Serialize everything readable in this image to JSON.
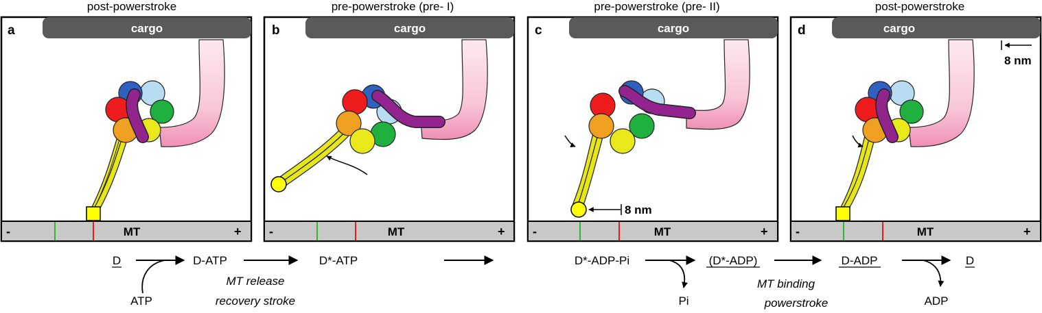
{
  "panels": [
    {
      "letter": "a",
      "title": "post-powerstroke",
      "cargo": "cargo",
      "track_label": "MT",
      "minus": "-",
      "plus": "+"
    },
    {
      "letter": "b",
      "title": "pre-powerstroke (pre- I)",
      "cargo": "cargo",
      "track_label": "MT",
      "minus": "-",
      "plus": "+"
    },
    {
      "letter": "c",
      "title": "pre-powerstroke (pre- II)",
      "cargo": "cargo",
      "track_label": "MT",
      "minus": "-",
      "plus": "+",
      "step_label": "8 nm"
    },
    {
      "letter": "d",
      "title": "post-powerstroke",
      "cargo": "cargo",
      "track_label": "MT",
      "minus": "-",
      "plus": "+",
      "step_label": "8 nm"
    }
  ],
  "scheme": {
    "states": [
      "D",
      "D-ATP",
      "D*-ATP",
      "D*-ADP-Pi",
      "(D*-ADP)",
      "D-ADP",
      "D"
    ],
    "inputs": {
      "atp": "ATP"
    },
    "outputs": {
      "pi": "Pi",
      "adp": "ADP"
    },
    "notes": {
      "release_1": "MT release",
      "release_2": "recovery stroke",
      "binding_1": "MT binding",
      "binding_2": "powerstroke"
    }
  },
  "colors": {
    "cargo": "#5a5a5a",
    "track": "#c8c8c8",
    "green_mark": "#2eb82e",
    "red_mark": "#e02020",
    "linker": "#a0259b",
    "stalk": "#f4a6c3",
    "stalk_fade": "#fde9f0",
    "stem": "#e6e619",
    "aaa1": "#e8e81a",
    "aaa2": "#f0a020",
    "aaa3": "#ee1c1c",
    "aaa4": "#3060c0",
    "aaa5": "#b8dcf2",
    "aaa6": "#20b040"
  }
}
